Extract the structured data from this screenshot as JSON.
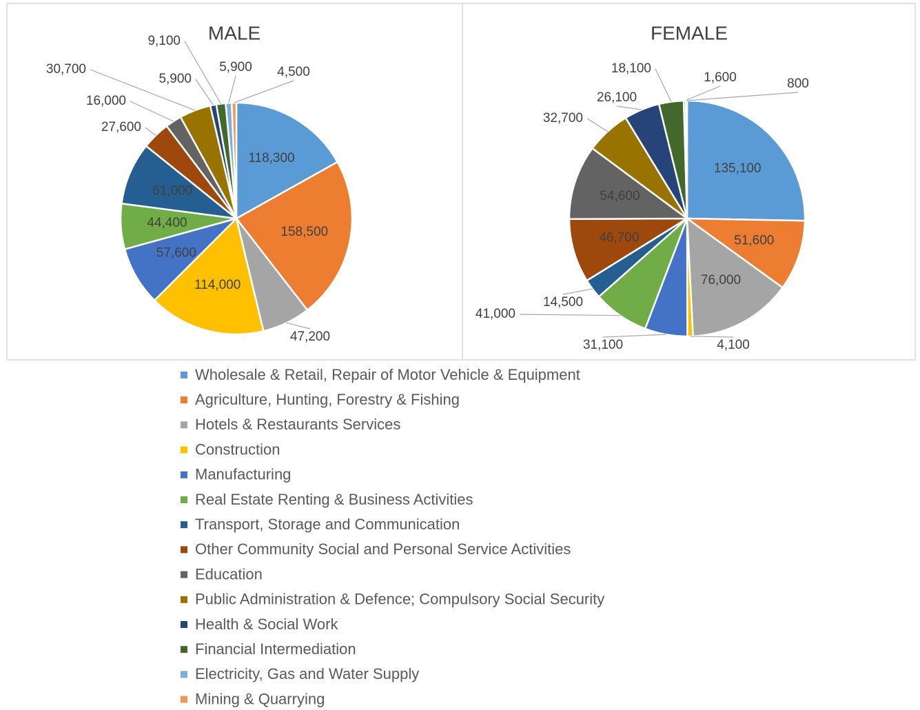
{
  "chart_data": [
    {
      "type": "pie",
      "title": "MALE",
      "values": [
        118300,
        158500,
        47200,
        114000,
        57600,
        44400,
        61000,
        27600,
        16000,
        30700,
        5900,
        9100,
        5900,
        4500
      ],
      "value_labels": [
        "118,300",
        "158,500",
        "47,200",
        "114,000",
        "57,600",
        "44,400",
        "61,000",
        "27,600",
        "16,000",
        "30,700",
        "5,900",
        "9,100",
        "5,900",
        "4,500"
      ]
    },
    {
      "type": "pie",
      "title": "FEMALE",
      "values": [
        135100,
        51600,
        76000,
        4100,
        31100,
        41000,
        14500,
        46700,
        54600,
        32700,
        26100,
        18100,
        1600,
        800
      ],
      "value_labels": [
        "135,100",
        "51,600",
        "76,000",
        "4,100",
        "31,100",
        "41,000",
        "14,500",
        "46,700",
        "54,600",
        "32,700",
        "26,100",
        "18,100",
        "1,600",
        "800"
      ]
    }
  ],
  "legend": {
    "labels": [
      "Wholesale & Retail, Repair of Motor Vehicle & Equipment",
      "Agriculture, Hunting, Forestry & Fishing",
      "Hotels & Restaurants Services",
      "Construction",
      "Manufacturing",
      "Real Estate Renting & Business Activities",
      "Transport, Storage and Communication",
      "Other Community Social and Personal Service Activities",
      "Education",
      "Public Administration & Defence; Compulsory Social Security",
      "Health & Social Work",
      "Financial Intermediation",
      "Electricity, Gas and Water Supply",
      "Mining & Quarrying"
    ],
    "colors": [
      "#5b9bd5",
      "#ed7d31",
      "#a5a5a5",
      "#ffc000",
      "#4472c4",
      "#70ad47",
      "#255e91",
      "#9e480e",
      "#636363",
      "#997300",
      "#264478",
      "#43682b",
      "#7cafdd",
      "#f1975a"
    ]
  }
}
